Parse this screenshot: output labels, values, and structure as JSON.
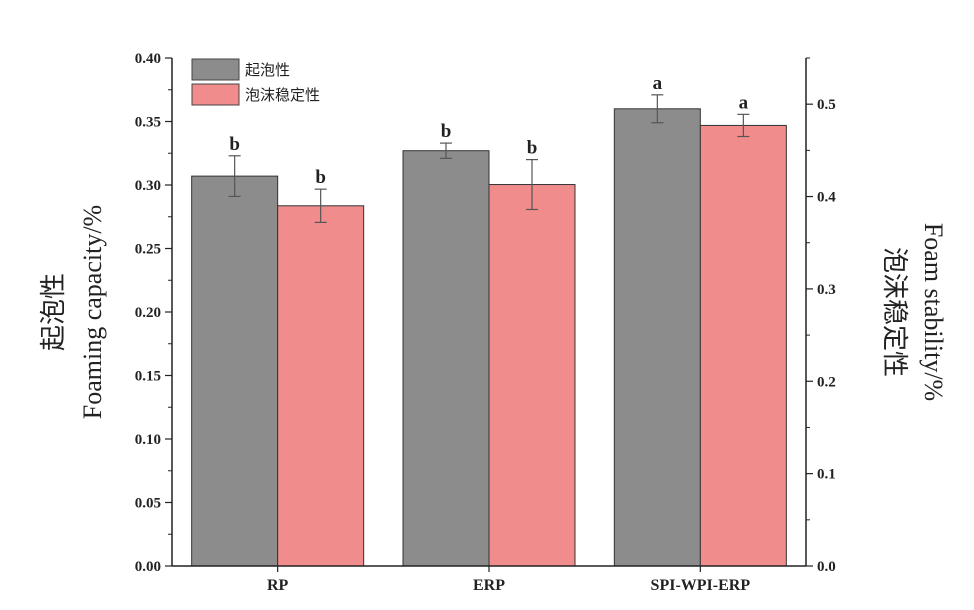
{
  "chart_data": {
    "type": "bar",
    "categories": [
      "RP",
      "ERP",
      "SPI-WPI-ERP"
    ],
    "series": [
      {
        "name": "起泡性",
        "axis": "left",
        "color": "#8c8c8c",
        "values": [
          0.307,
          0.327,
          0.36
        ],
        "errors": [
          0.016,
          0.006,
          0.011
        ],
        "significance": [
          "b",
          "b",
          "a"
        ]
      },
      {
        "name": "泡沫稳定性",
        "axis": "right",
        "color": "#f08c8c",
        "values": [
          0.39,
          0.413,
          0.477
        ],
        "errors": [
          0.018,
          0.027,
          0.012
        ],
        "significance": [
          "b",
          "b",
          "a"
        ]
      }
    ],
    "y_left": {
      "label_line1": "起泡性",
      "label_line2": "Foaming  capacity/%",
      "ylim": [
        0,
        0.4
      ],
      "ticks": [
        "0.00",
        "0.05",
        "0.10",
        "0.15",
        "0.20",
        "0.25",
        "0.30",
        "0.35",
        "0.40"
      ]
    },
    "y_right": {
      "label_line1": "泡沫稳定性",
      "label_line2": "Foam  stability/%",
      "ylim": [
        0,
        0.55
      ],
      "ticks": [
        "0.0",
        "0.1",
        "0.2",
        "0.3",
        "0.4",
        "0.5"
      ]
    },
    "legend_position": "top-left",
    "grid": false
  }
}
